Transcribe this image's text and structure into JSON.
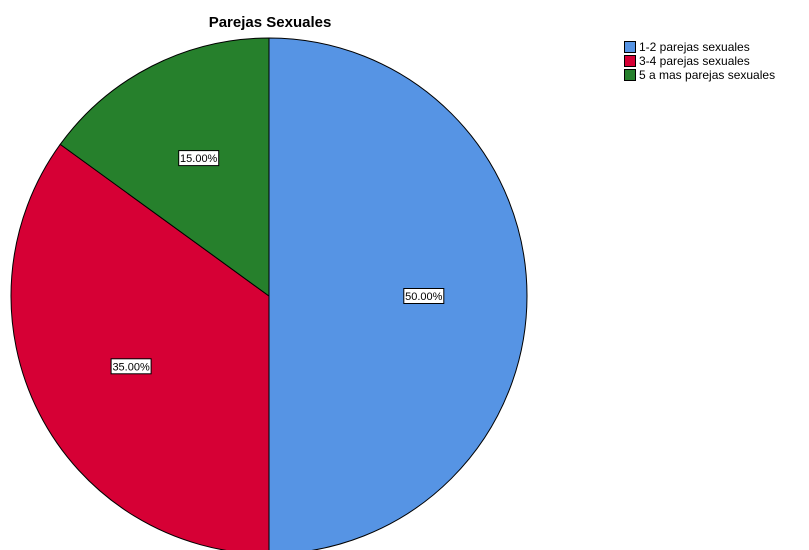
{
  "chart_data": {
    "type": "pie",
    "title": "Parejas Sexuales",
    "categories": [
      "1-2 parejas sexuales",
      "3-4 parejas sexuales",
      "5 a mas parejas sexuales"
    ],
    "values": [
      50.0,
      35.0,
      15.0
    ],
    "labels": [
      "50.00%",
      "35.00%",
      "15.00%"
    ],
    "colors": [
      "#5694e4",
      "#d60035",
      "#26802c"
    ],
    "legend_position": "top-right",
    "start_angle": "12 o'clock",
    "direction": "clockwise"
  }
}
